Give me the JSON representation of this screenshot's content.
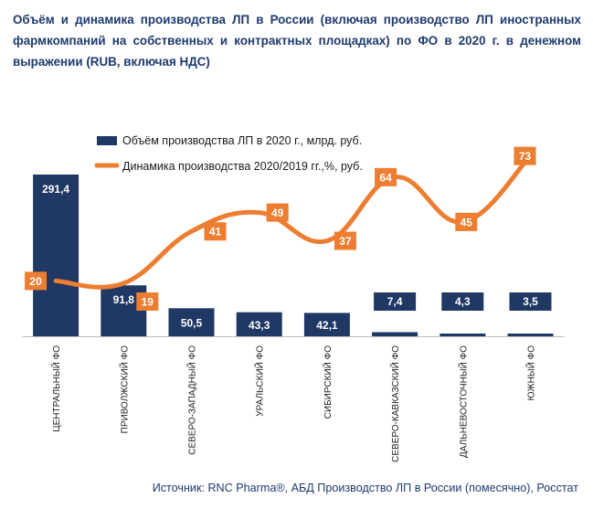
{
  "chart_data": {
    "type": "bar+line",
    "title": "Объём и динамика производства ЛП в России (включая производство ЛП иностранных фармкомпаний на собственных и контрактных площадках) по ФО в 2020 г. в денежном выражении (RUB, включая НДС)",
    "categories": [
      "ЦЕНТРАЛЬНЫЙ ФО",
      "ПРИВОЛЖСКИЙ ФО",
      "СЕВЕРО-ЗАПАДНЫЙ ФО",
      "УРАЛЬСКИЙ ФО",
      "СИБИРСКИЙ ФО",
      "СЕВЕРО-КАВКАЗСКИЙ ФО",
      "ДАЛЬНЕВОСТОЧНЫЙ ФО",
      "ЮЖНЫЙ ФО"
    ],
    "bar_labels": [
      "291,4",
      "91,8",
      "50,5",
      "43,3",
      "42,1",
      "7,4",
      "4,3",
      "3,5"
    ],
    "line_labels": [
      "20",
      "19",
      "41",
      "49",
      "37",
      "64",
      "45",
      "73"
    ],
    "series": [
      {
        "name": "Объём производства ЛП в 2020 г., млрд. руб.",
        "type": "bar",
        "values": [
          291.4,
          91.8,
          50.5,
          43.3,
          42.1,
          7.4,
          4.3,
          3.5
        ],
        "color": "#1f3864"
      },
      {
        "name": "Динамика производства 2020/2019 гг.,%, руб.",
        "type": "line",
        "values": [
          20,
          19,
          41,
          49,
          37,
          64,
          45,
          73
        ],
        "color": "#ed7d31"
      }
    ],
    "legend_position": "top",
    "grid": false
  },
  "source": "Источник: RNC Pharma®, АБД Производство ЛП в России (помесячно), Росстат"
}
